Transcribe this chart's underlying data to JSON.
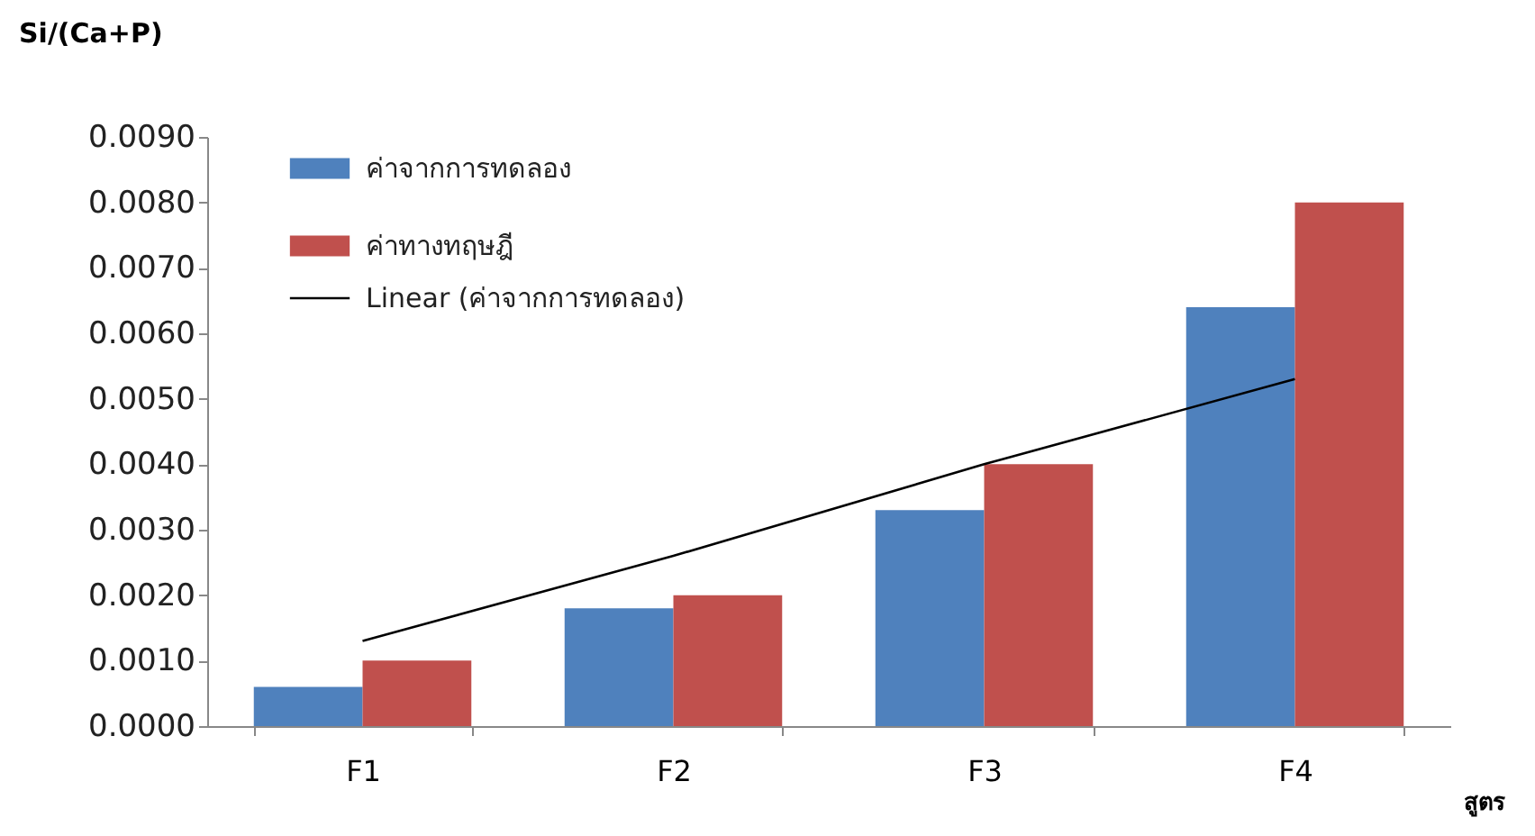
{
  "chart_data": {
    "type": "bar",
    "ylabel": "Si/(Ca+P)",
    "xlabel": "สูตร",
    "categories": [
      "F1",
      "F2",
      "F3",
      "F4"
    ],
    "series": [
      {
        "name": "ค่าจากการทดลอง",
        "color": "#4f81bd",
        "values": [
          0.0006,
          0.0018,
          0.0033,
          0.0064
        ]
      },
      {
        "name": "ค่าทางทฤษฎี",
        "color": "#c0504d",
        "values": [
          0.001,
          0.002,
          0.004,
          0.008
        ]
      },
      {
        "name": "Linear (ค่าจากการทดลอง)",
        "type": "line",
        "color": "#000000",
        "x": [
          "F1",
          "F2",
          "F3",
          "F4"
        ],
        "values": [
          0.0013,
          0.0026,
          0.004,
          0.0053
        ]
      }
    ],
    "ylim": [
      0,
      0.009
    ],
    "yticks": [
      {
        "value": 0,
        "label": "0.0000"
      },
      {
        "value": 0.001,
        "label": "0.0010"
      },
      {
        "value": 0.002,
        "label": "0.0020"
      },
      {
        "value": 0.003,
        "label": "0.0030"
      },
      {
        "value": 0.004,
        "label": "0.0040"
      },
      {
        "value": 0.005,
        "label": "0.0050"
      },
      {
        "value": 0.006,
        "label": "0.0060"
      },
      {
        "value": 0.007,
        "label": "0.0070"
      },
      {
        "value": 0.008,
        "label": "0.0080"
      },
      {
        "value": 0.009,
        "label": "0.0090"
      }
    ],
    "grid": false,
    "legend": "top left"
  }
}
